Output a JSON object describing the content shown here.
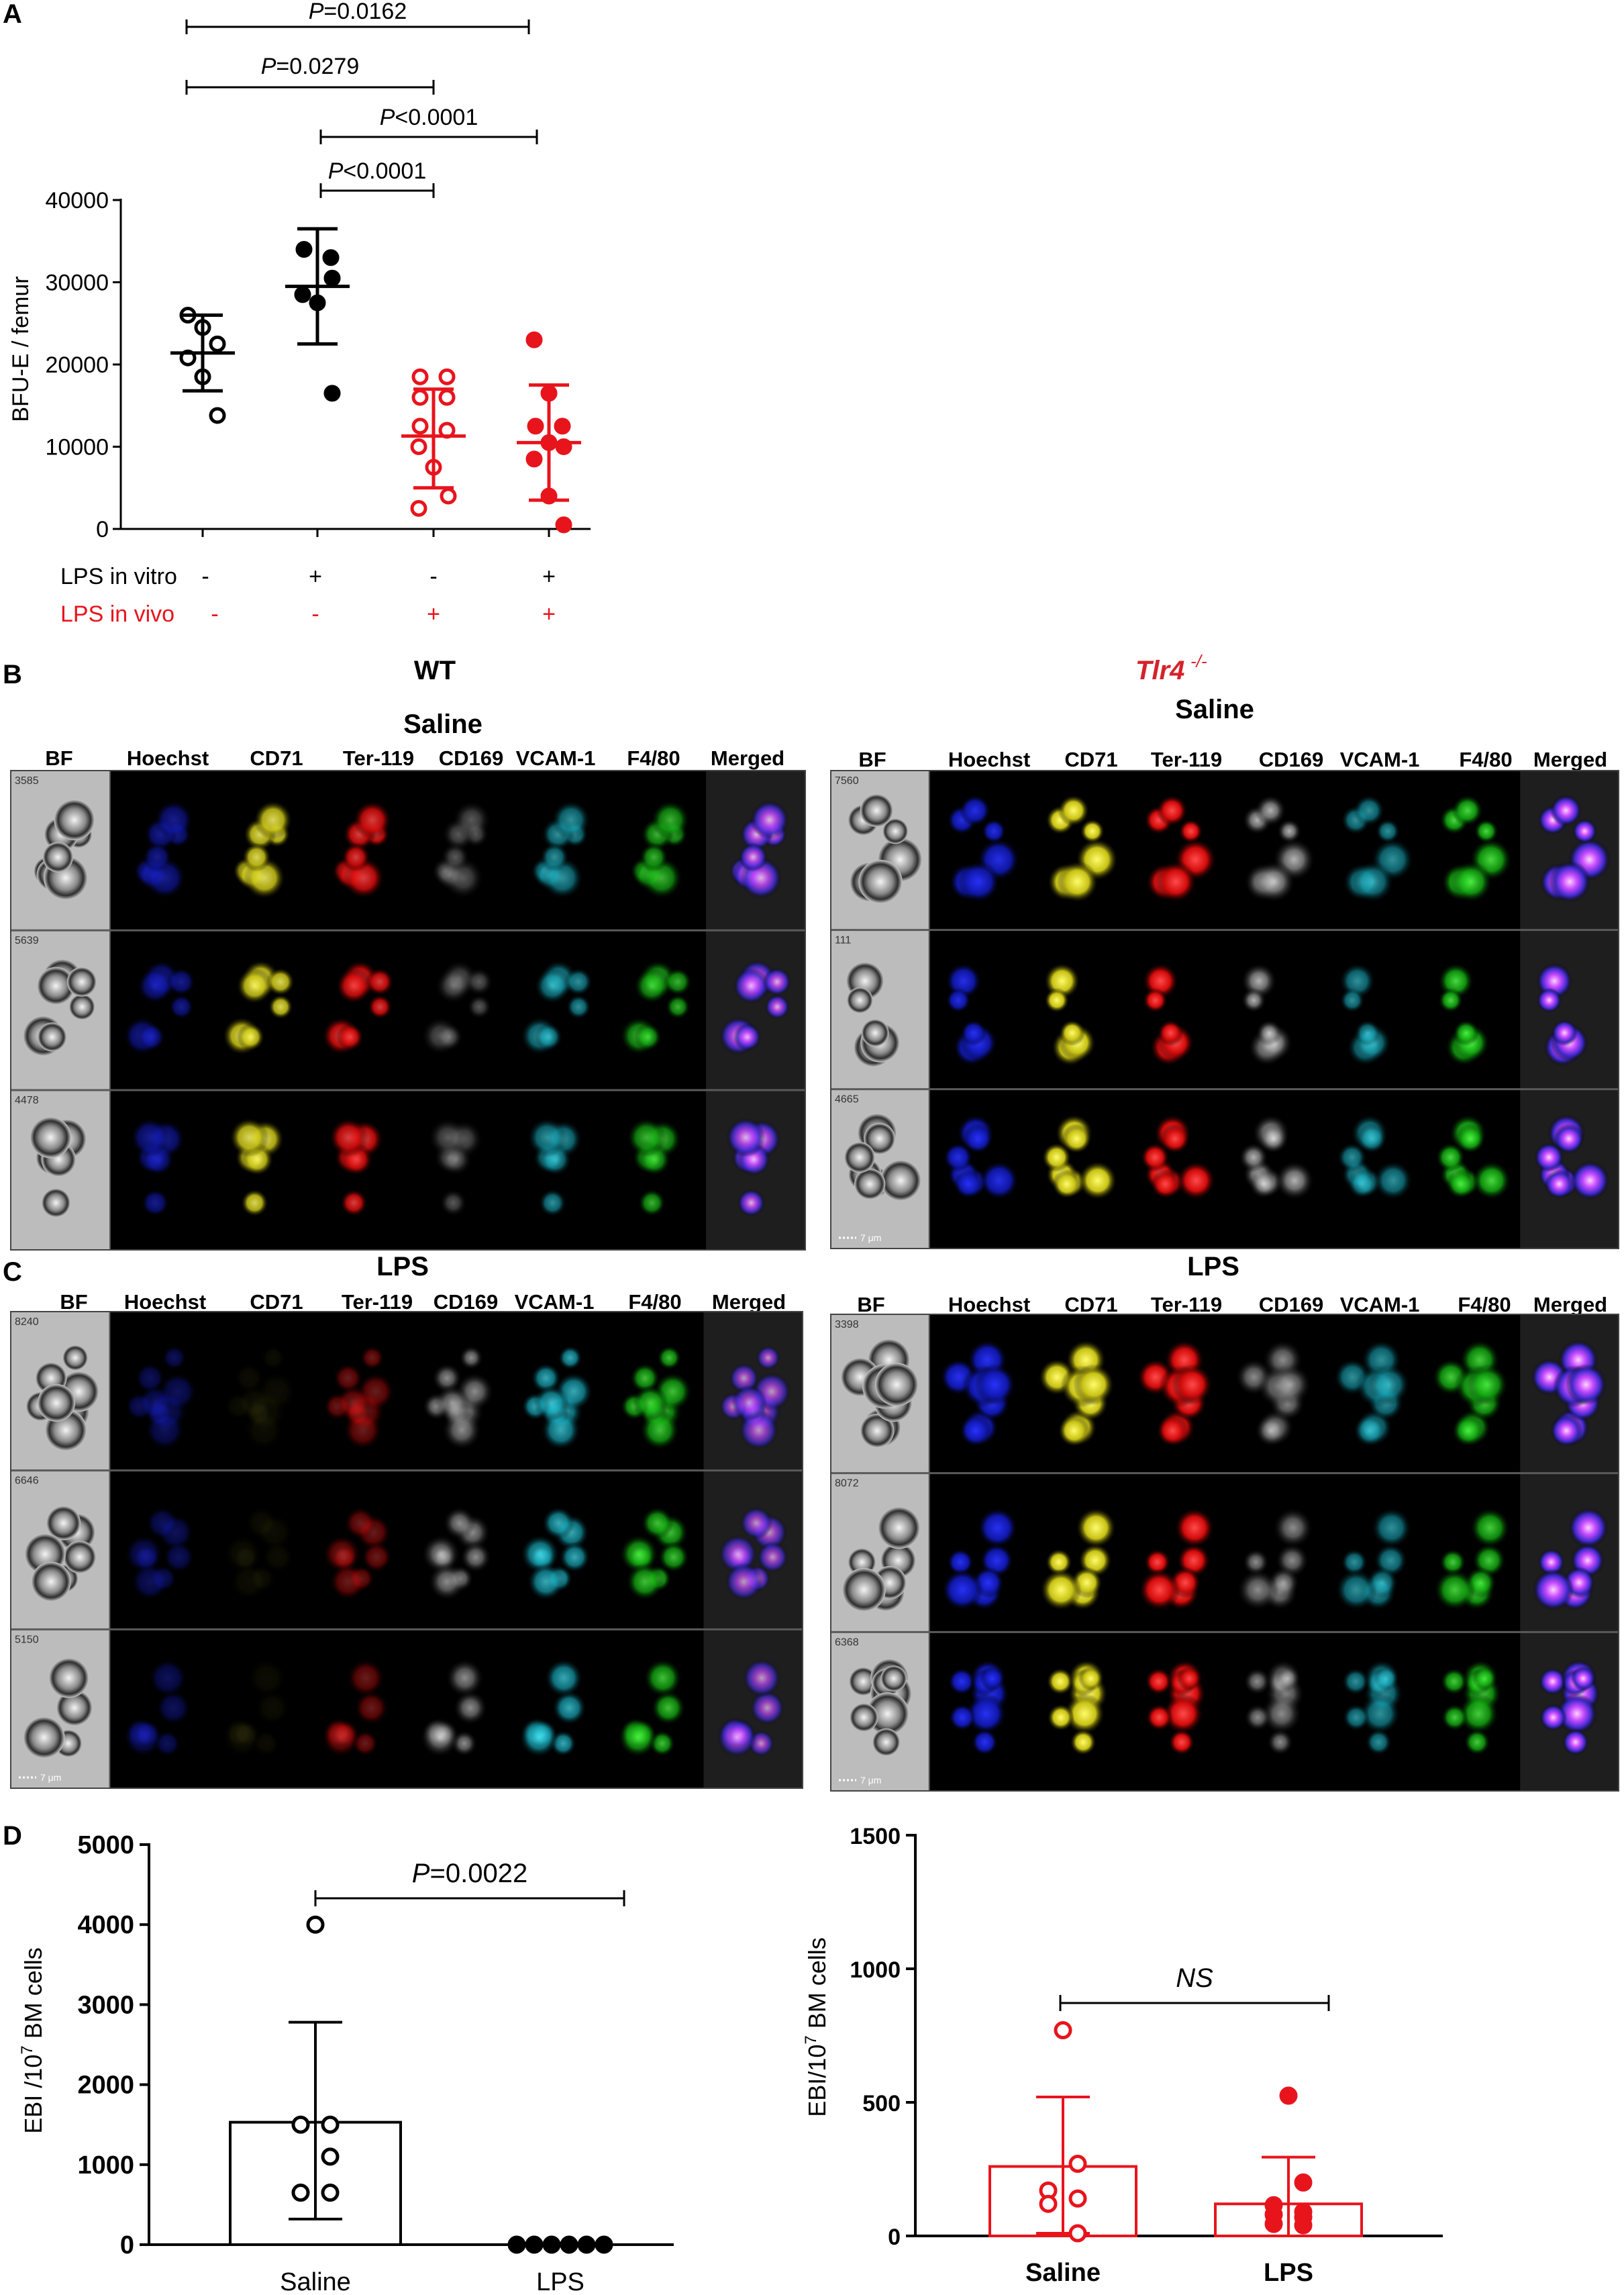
{
  "panels": {
    "A": {
      "letter": "A",
      "ylabel": "BFU-E / femur",
      "yticks": [
        "0",
        "10000",
        "20000",
        "30000",
        "40000"
      ],
      "row1_label": "LPS in vitro",
      "row2_label": "LPS in vivo",
      "row1_signs": [
        "-",
        "+",
        "-",
        "+"
      ],
      "row2_signs": [
        "-",
        "-",
        "+",
        "+"
      ],
      "p_values": [
        {
          "prefix": "P",
          "text": "=0.0162",
          "from": 1,
          "to": 4
        },
        {
          "prefix": "P",
          "text": "=0.0279",
          "from": 1,
          "to": 3
        },
        {
          "prefix": "P",
          "text": "<0.0001",
          "from": 2,
          "to": 4
        },
        {
          "prefix": "P",
          "text": "<0.0001",
          "from": 2,
          "to": 3
        }
      ]
    },
    "B": {
      "letter": "B",
      "wt_title": "WT",
      "wt_sub": "Saline",
      "ko_title": "Tlr4",
      "ko_sup": "-/-",
      "ko_sub": "Saline"
    },
    "C": {
      "letter": "C",
      "wt_sub": "LPS",
      "ko_sub": "LPS"
    },
    "channels": [
      "BF",
      "Hoechst",
      "CD71",
      "Ter-119",
      "CD169",
      "VCAM-1",
      "F4/80",
      "Merged"
    ],
    "cell_ids": {
      "wt_saline": [
        "3585",
        "5639",
        "4478"
      ],
      "ko_saline": [
        "7560",
        "111",
        "4665"
      ],
      "wt_lps": [
        "8240",
        "6646",
        "5150"
      ],
      "ko_lps": [
        "3398",
        "8072",
        "6368"
      ]
    },
    "scale_label": "7 μm",
    "D": {
      "letter": "D",
      "left": {
        "ylabel_main": "EBI /10",
        "ylabel_sup": "7",
        "ylabel_tail": " BM cells",
        "yticks": [
          "0",
          "1000",
          "2000",
          "3000",
          "4000",
          "5000"
        ],
        "categories": [
          "Saline",
          "LPS"
        ],
        "p_prefix": "P",
        "p_text": "=0.0022"
      },
      "right": {
        "ylabel_main": "EBI/10",
        "ylabel_sup": "7",
        "ylabel_tail": " BM cells",
        "yticks": [
          "0",
          "500",
          "1000",
          "1500"
        ],
        "categories": [
          "Saline",
          "LPS"
        ],
        "p_text": "NS"
      }
    }
  },
  "colors": {
    "black": "#000000",
    "red": "#e8141c",
    "ko_title": "#d6222b"
  },
  "chart_data": [
    {
      "type": "scatter",
      "panel": "A",
      "ylabel": "BFU-E / femur",
      "ylim": [
        0,
        40000
      ],
      "groups": [
        {
          "lps_in_vitro": "-",
          "lps_in_vivo": "-",
          "color": "#000000",
          "filled": false,
          "points": [
            26000,
            24500,
            22500,
            20800,
            18500,
            13800
          ],
          "mean": 21400,
          "sd_low": 16800,
          "sd_high": 26000
        },
        {
          "lps_in_vitro": "+",
          "lps_in_vivo": "-",
          "color": "#000000",
          "filled": true,
          "points": [
            34000,
            33000,
            30500,
            28500,
            27500,
            16500
          ],
          "mean": 29500,
          "sd_low": 22500,
          "sd_high": 36500
        },
        {
          "lps_in_vitro": "-",
          "lps_in_vivo": "+",
          "color": "#e8141c",
          "filled": false,
          "points": [
            18500,
            18500,
            16000,
            16000,
            12500,
            12000,
            10000,
            7500,
            4000,
            2500
          ],
          "mean": 11300,
          "sd_low": 5000,
          "sd_high": 17000
        },
        {
          "lps_in_vitro": "+",
          "lps_in_vivo": "+",
          "color": "#e8141c",
          "filled": true,
          "points": [
            23000,
            16500,
            12500,
            12500,
            10500,
            10000,
            8500,
            4000,
            500
          ],
          "mean": 10500,
          "sd_low": 3500,
          "sd_high": 17500
        }
      ]
    },
    {
      "type": "bar",
      "panel": "D-left",
      "categories": [
        "Saline",
        "LPS"
      ],
      "values": [
        1530,
        0
      ],
      "sd_high": [
        2780,
        0
      ],
      "sd_low": [
        320,
        0
      ],
      "points": [
        [
          4000,
          1500,
          1500,
          1100,
          650,
          650
        ],
        [
          0,
          0,
          0,
          0,
          0,
          0
        ]
      ],
      "ylim": [
        0,
        5000
      ],
      "color": "#000000"
    },
    {
      "type": "bar",
      "panel": "D-right",
      "categories": [
        "Saline",
        "LPS"
      ],
      "values": [
        260,
        120
      ],
      "sd_high": [
        520,
        295
      ],
      "sd_low": [
        10,
        0
      ],
      "points": [
        [
          770,
          270,
          170,
          140,
          120,
          10
        ],
        [
          525,
          200,
          115,
          90,
          80,
          70,
          45,
          40
        ]
      ],
      "ylim": [
        0,
        1500
      ],
      "color": "#e8141c"
    }
  ]
}
